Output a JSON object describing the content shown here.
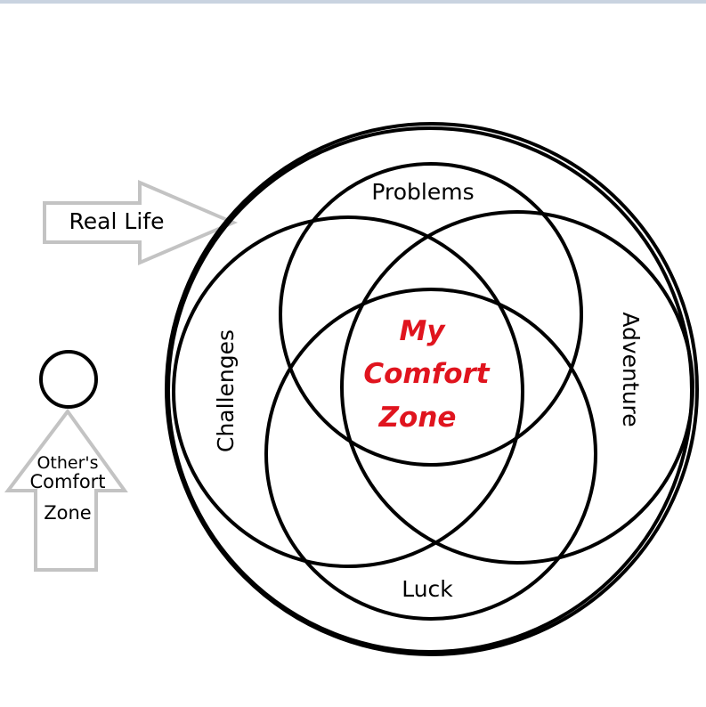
{
  "diagram": {
    "arrow_right_label": "Real Life",
    "person_label_line1": "Other's",
    "person_label_line2": "Comfort",
    "person_label_line3": "Zone",
    "label_top": "Problems",
    "label_left": "Challenges",
    "label_right": "Adventure",
    "label_bottom": "Luck",
    "center_line1": "My",
    "center_line2": "Comfort",
    "center_line3": "Zone",
    "colors": {
      "stroke": "#000000",
      "arrow_stroke": "#c3c3c3",
      "center_text": "#e0141e"
    }
  }
}
